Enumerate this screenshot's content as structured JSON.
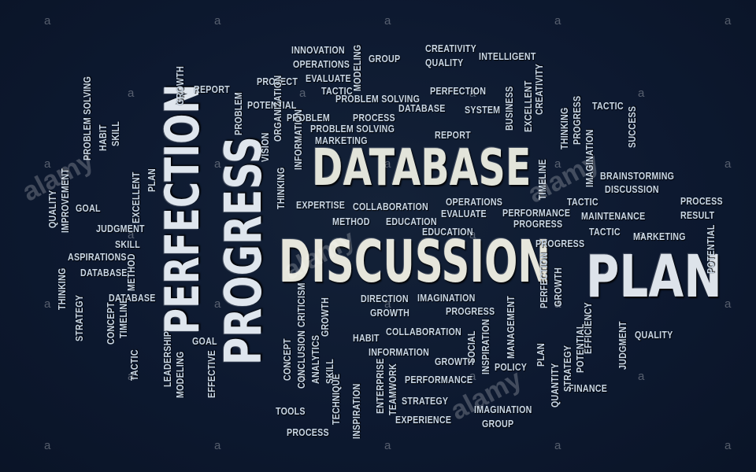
{
  "big_words": {
    "database": "DATABASE",
    "discussion": "DISCUSSION",
    "plan": "PLAN",
    "perfection": "PERFECTION",
    "progress": "PROGRESS"
  },
  "small_words": [
    "INNOVATION",
    "OPERATIONS",
    "EVALUATE",
    "GROUP",
    "CREATIVITY",
    "QUALITY",
    "INTELLIGENT",
    "MODELING",
    "REPORT",
    "PROJECT",
    "TACTIC",
    "POTENTIAL",
    "PROBLEM SOLVING",
    "DATABASE",
    "SYSTEM",
    "PERFECTION",
    "PROBLEM",
    "PROCESS",
    "PROBLEM SOLVING",
    "MARKETING",
    "REPORT",
    "BUSINESS",
    "EXCELLENT",
    "CREATIVITY",
    "TACTIC",
    "PROGRESS",
    "THINKING",
    "IMAGINATION",
    "TIMELINE",
    "SUCCESS",
    "BRAINSTORMING",
    "DISCUSSION",
    "PROCESS",
    "RESULT",
    "TACTIC",
    "MAINTENANCE",
    "TACTIC",
    "MARKETING",
    "POTENTIAL",
    "PERFORMANCE",
    "PROGRESS",
    "OPERATIONS",
    "EVALUATE",
    "EDUCATION",
    "EXPERTISE",
    "COLLABORATION",
    "METHOD",
    "EDUCATION",
    "PROGRESS",
    "PERFECTION",
    "GROWTH",
    "EFFICIENCY",
    "QUALITY",
    "JUDGMENT",
    "DIRECTION",
    "IMAGINATION",
    "GROWTH",
    "PROGRESS",
    "COLLABORATION",
    "HABIT",
    "INFORMATION",
    "GROWTH",
    "MANAGEMENT",
    "SOCIAL",
    "INSPIRATION",
    "POLICY",
    "PLAN",
    "QUANTITY",
    "STRATEGY",
    "POTENTIAL",
    "FINANCE",
    "PERFORMANCE",
    "STRATEGY",
    "EXPERIENCE",
    "IMAGINATION",
    "GROUP",
    "ENTERPRISE",
    "TEAMWORK",
    "CONCEPT",
    "CONCLUSION",
    "ANALYTICS",
    "SKILL",
    "CRITICISM",
    "GROWTH",
    "TECHNIQUE",
    "INSPIRATION",
    "TOOLS",
    "PROCESS",
    "GOAL",
    "LEADERSHIP",
    "MODELING",
    "EFFECTIVE",
    "DATABASE",
    "TACTIC",
    "CONCEPT",
    "TIMELINE",
    "STRATEGY",
    "THINKING",
    "DATABASE",
    "ASPIRATIONS",
    "SKILL",
    "JUDGMENT",
    "GOAL",
    "QUALITY",
    "IMPROVEMENT",
    "PROBLEM SOLVING",
    "HABIT",
    "SKILL",
    "PLAN",
    "EXCELLENT",
    "METHOD",
    "GROWTH",
    "PROBLEM",
    "ORGANIZATION",
    "VISION",
    "THINKING",
    "INFORMATION",
    "TECHNIQUE"
  ],
  "watermark": {
    "letter": "a",
    "logo": "alamy"
  },
  "colors": {
    "background": "#0d1930",
    "big_text": "#e4e6dc",
    "small_text": "#c9d7e6"
  }
}
